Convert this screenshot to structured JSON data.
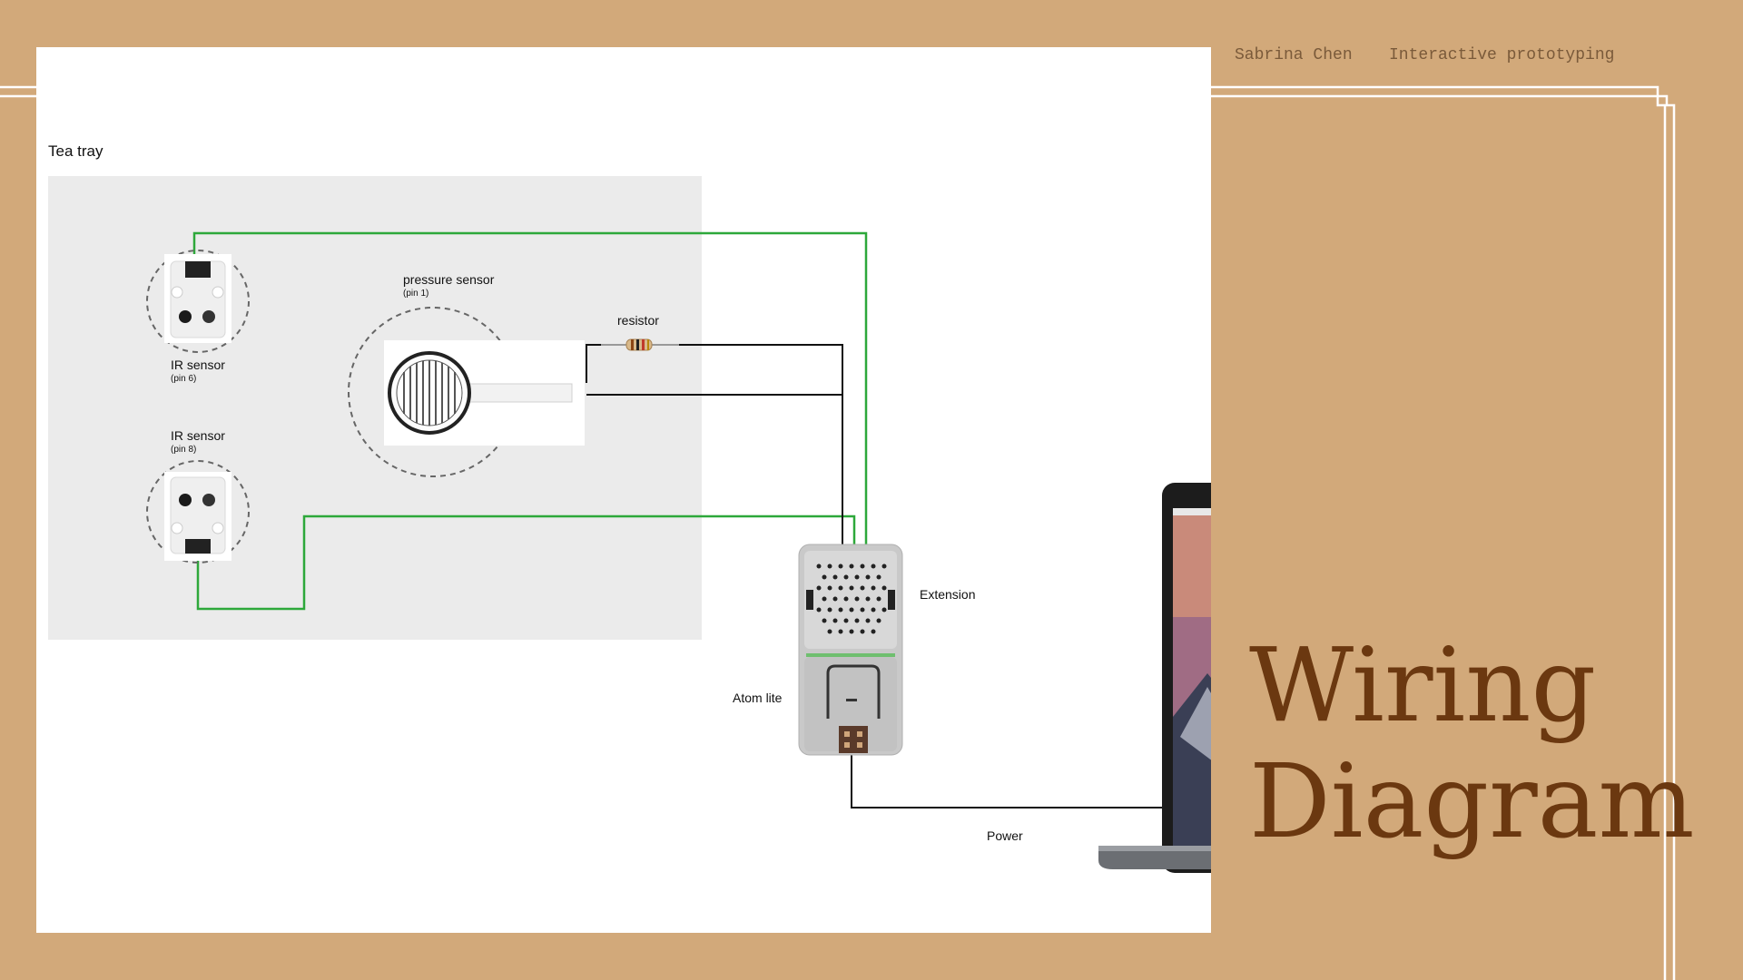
{
  "header": {
    "author": "Sabrina Chen",
    "course": "Interactive prototyping"
  },
  "title": {
    "line1": "Wiring",
    "line2": "Diagram"
  },
  "diagram": {
    "tray_label": "Tea tray",
    "ir_sensor_top": {
      "name": "IR sensor",
      "pin": "(pin 6)"
    },
    "ir_sensor_bottom": {
      "name": "IR sensor",
      "pin": "(pin 8)"
    },
    "pressure_sensor": {
      "name": "pressure sensor",
      "pin": "(pin 1)"
    },
    "resistor": "resistor",
    "extension": "Extension",
    "atom_lite": "Atom lite",
    "power": "Power"
  },
  "colors": {
    "background": "#D2A97A",
    "title": "#6b3810",
    "signal_wire": "#2da83a",
    "power_wire": "#111111",
    "tray": "#ebebeb"
  }
}
